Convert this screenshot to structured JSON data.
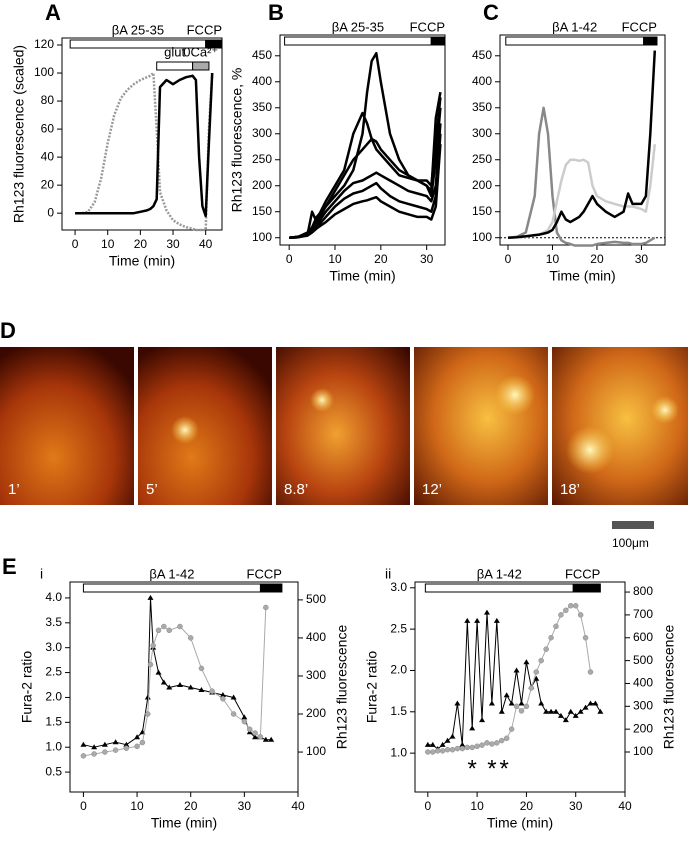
{
  "chart_data": [
    {
      "type": "line",
      "label": "A",
      "xlabel": "Time (min)",
      "ylabel": "Rh123 fluorescence (scaled)",
      "xlim": [
        -4,
        45
      ],
      "ylim": [
        -12,
        125
      ],
      "xticks": [
        0,
        10,
        20,
        30,
        40
      ],
      "yticks": [
        0,
        20,
        40,
        60,
        80,
        100,
        120
      ],
      "bars": [
        {
          "label": "βA 25-35",
          "start": -1.5,
          "end": 40,
          "color": "#ffffff",
          "row": 0
        },
        {
          "label": "FCCP",
          "start": 40,
          "end": 45,
          "color": "#000000",
          "row": 0
        },
        {
          "label": "glut",
          "start": 25,
          "end": 36,
          "color": "#ffffff",
          "row": 1
        },
        {
          "label": "0Ca²⁺",
          "start": 36,
          "end": 41,
          "color": "#aaaaaa",
          "row": 1
        }
      ],
      "x": [
        0,
        2,
        4,
        6,
        8,
        10,
        12,
        14,
        16,
        18,
        20,
        22,
        23,
        24,
        25,
        26,
        28,
        30,
        32,
        34,
        36,
        37,
        38,
        39,
        40,
        41,
        42
      ],
      "series": [
        {
          "color": "#999999",
          "dashed": true,
          "values": [
            0,
            0,
            1,
            8,
            25,
            50,
            70,
            82,
            88,
            92,
            95,
            97,
            98,
            100,
            60,
            15,
            2,
            -5,
            -8,
            -10,
            -11,
            -12,
            -12,
            -12,
            -12,
            60,
            100
          ]
        },
        {
          "color": "#000000",
          "values": [
            0,
            0,
            0,
            0,
            0,
            0,
            0,
            0,
            0,
            0,
            1,
            2,
            3,
            5,
            10,
            90,
            95,
            92,
            95,
            97,
            98,
            95,
            40,
            5,
            -2,
            50,
            100
          ]
        }
      ]
    },
    {
      "type": "line",
      "label": "B",
      "xlabel": "Time (min)",
      "ylabel": "Rh123 fluorescence, %",
      "xlim": [
        -2,
        34
      ],
      "ylim": [
        86,
        490
      ],
      "xticks": [
        0,
        10,
        20,
        30
      ],
      "yticks": [
        100,
        150,
        200,
        250,
        300,
        350,
        400,
        450
      ],
      "bars": [
        {
          "label": "βA 25-35",
          "start": -1,
          "end": 31,
          "color": "#ffffff",
          "row": 0
        },
        {
          "label": "FCCP",
          "start": 31,
          "end": 34,
          "color": "#000000",
          "row": 0
        }
      ],
      "x": [
        0,
        2,
        4,
        5,
        6,
        8,
        10,
        12,
        14,
        16,
        17,
        18,
        19,
        20,
        22,
        24,
        26,
        28,
        30,
        31,
        32,
        33
      ],
      "series": [
        {
          "color": "#000000",
          "values": [
            100,
            102,
            110,
            120,
            140,
            160,
            180,
            200,
            230,
            300,
            380,
            440,
            455,
            400,
            300,
            250,
            220,
            210,
            200,
            190,
            330,
            380
          ]
        },
        {
          "color": "#000000",
          "values": [
            100,
            102,
            108,
            118,
            135,
            170,
            200,
            230,
            300,
            340,
            320,
            290,
            270,
            260,
            240,
            220,
            215,
            210,
            210,
            200,
            280,
            370
          ]
        },
        {
          "color": "#000000",
          "values": [
            100,
            101,
            106,
            150,
            130,
            160,
            190,
            220,
            250,
            270,
            280,
            290,
            285,
            270,
            250,
            230,
            220,
            210,
            200,
            180,
            250,
            350
          ]
        },
        {
          "color": "#000000",
          "values": [
            100,
            102,
            108,
            115,
            125,
            150,
            170,
            190,
            205,
            210,
            215,
            220,
            225,
            220,
            210,
            200,
            190,
            185,
            180,
            170,
            200,
            320
          ]
        },
        {
          "color": "#000000",
          "values": [
            100,
            101,
            105,
            112,
            120,
            140,
            160,
            175,
            185,
            190,
            195,
            200,
            205,
            195,
            180,
            170,
            165,
            160,
            155,
            150,
            180,
            300
          ]
        },
        {
          "color": "#000000",
          "values": [
            100,
            101,
            104,
            110,
            118,
            130,
            145,
            155,
            165,
            170,
            172,
            175,
            178,
            170,
            160,
            150,
            145,
            140,
            140,
            135,
            160,
            280
          ]
        }
      ]
    },
    {
      "type": "line",
      "label": "C",
      "xlabel": "Time (min)",
      "ref_line": 100,
      "xlim": [
        -1.8,
        35.3
      ],
      "ylim": [
        86,
        490
      ],
      "xticks": [
        0,
        10,
        20,
        30
      ],
      "yticks": [
        100,
        150,
        200,
        250,
        300,
        350,
        400,
        450
      ],
      "bars": [
        {
          "label": "βA 1-42",
          "start": -0.5,
          "end": 30.5,
          "color": "#ffffff",
          "row": 0
        },
        {
          "label": "FCCP",
          "start": 30.5,
          "end": 33.5,
          "color": "#000000",
          "row": 0
        }
      ],
      "x": [
        0,
        2,
        4,
        6,
        7,
        8,
        9,
        10,
        11,
        12,
        13,
        14,
        15,
        16,
        17,
        18,
        19,
        20,
        22,
        24,
        26,
        27,
        28,
        30,
        31,
        32,
        33
      ],
      "series": [
        {
          "color": "#888888",
          "values": [
            100,
            102,
            110,
            180,
            300,
            350,
            300,
            180,
            110,
            95,
            90,
            88,
            85,
            85,
            85,
            85,
            85,
            88,
            90,
            92,
            90,
            90,
            88,
            88,
            90,
            95,
            100
          ]
        },
        {
          "color": "#cccccc",
          "values": [
            100,
            101,
            102,
            104,
            106,
            110,
            115,
            130,
            170,
            210,
            240,
            250,
            250,
            248,
            250,
            245,
            200,
            180,
            170,
            165,
            160,
            160,
            160,
            155,
            150,
            200,
            280
          ]
        },
        {
          "color": "#000000",
          "values": [
            100,
            101,
            103,
            105,
            106,
            108,
            110,
            115,
            130,
            150,
            135,
            130,
            135,
            140,
            150,
            165,
            180,
            165,
            150,
            140,
            150,
            185,
            165,
            165,
            180,
            300,
            460
          ]
        }
      ]
    },
    {
      "type": "line",
      "label": "i",
      "xlabel": "Time (min)",
      "ylabel": "Fura-2 ratio",
      "y2label": "Rh123 fluorescence",
      "xlim": [
        -2.5,
        40
      ],
      "ylim": [
        0.1,
        4.32
      ],
      "y2lim": [
        -5,
        547
      ],
      "xticks": [
        0,
        10,
        20,
        30,
        40
      ],
      "yticks": [
        0.5,
        {
          "value": 1,
          "label": "1.0"
        },
        1.5,
        {
          "value": 2,
          "label": "2.0"
        },
        2.5,
        {
          "value": 3,
          "label": "3.0"
        },
        3.5,
        {
          "value": 4,
          "label": "4.0"
        }
      ],
      "y2ticks": [
        100,
        200,
        300,
        400,
        500
      ],
      "bars": [
        {
          "label": "βA 1-42",
          "start": 0,
          "end": 33,
          "color": "#ffffff",
          "row": 0
        },
        {
          "label": "FCCP",
          "start": 33,
          "end": 37,
          "color": "#000000",
          "row": 0
        }
      ],
      "x": [
        0,
        2,
        4,
        6,
        8,
        10,
        11,
        12,
        12.5,
        13,
        14,
        15,
        16,
        18,
        20,
        22,
        24,
        26,
        28,
        30,
        31,
        32,
        33,
        34,
        35
      ],
      "series": [
        {
          "color": "#000000",
          "marker": "triangle",
          "values": [
            1.05,
            1.0,
            1.05,
            1.1,
            1.05,
            1.2,
            1.3,
            2.0,
            4.0,
            3.0,
            2.5,
            2.3,
            2.2,
            2.25,
            2.2,
            2.15,
            2.1,
            2.05,
            2.0,
            1.6,
            1.3,
            1.2,
            1.2,
            1.15,
            1.15
          ]
        },
        {
          "color": "#aaaaaa",
          "marker": "circle",
          "axis": "y2",
          "values": [
            90,
            95,
            100,
            105,
            110,
            115,
            125,
            200,
            330,
            380,
            420,
            430,
            420,
            430,
            400,
            320,
            260,
            240,
            200,
            180,
            160,
            150,
            140,
            480,
            null
          ]
        }
      ]
    },
    {
      "type": "line",
      "label": "ii",
      "xlabel": "Time (min)",
      "ylabel": "Fura-2 ratio",
      "y2label": "Rh123 fluorescence",
      "xlim": [
        -2.6,
        40
      ],
      "ylim": [
        0.53,
        3.07
      ],
      "y2lim": [
        -75,
        844
      ],
      "xticks": [
        0,
        10,
        20,
        30,
        40
      ],
      "yticks": [
        {
          "value": 1,
          "label": "1.0"
        },
        1.5,
        {
          "value": 2,
          "label": "2.0"
        },
        2.5,
        {
          "value": 3,
          "label": "3.0"
        }
      ],
      "y2ticks": [
        100,
        200,
        300,
        400,
        500,
        600,
        700,
        800
      ],
      "bars": [
        {
          "label": "βA 1-42",
          "start": -0.5,
          "end": 29.5,
          "color": "#ffffff",
          "row": 0
        },
        {
          "label": "FCCP",
          "start": 29.5,
          "end": 35,
          "color": "#000000",
          "row": 0
        }
      ],
      "annotations": [
        {
          "text": "*",
          "x": 9
        },
        {
          "text": "*",
          "x": 13
        },
        {
          "text": "*",
          "x": 15.5
        }
      ],
      "x": [
        0,
        1,
        2,
        3,
        4,
        5,
        6,
        7,
        8,
        9,
        10,
        11,
        12,
        13,
        14,
        15,
        16,
        17,
        18,
        19,
        20,
        21,
        22,
        23,
        24,
        25,
        26,
        27,
        28,
        29,
        30,
        31,
        32,
        33,
        34,
        35
      ],
      "series": [
        {
          "color": "#000000",
          "marker": "triangle",
          "values": [
            1.1,
            1.1,
            1.05,
            1.1,
            1.15,
            1.2,
            1.6,
            1.1,
            2.6,
            1.3,
            2.6,
            1.4,
            2.7,
            1.6,
            2.6,
            1.5,
            1.7,
            1.6,
            2.0,
            1.6,
            2.1,
            1.8,
            1.9,
            1.6,
            1.5,
            1.5,
            1.5,
            1.45,
            1.4,
            1.5,
            1.45,
            1.5,
            1.55,
            1.6,
            1.6,
            1.5
          ]
        },
        {
          "color": "#aaaaaa",
          "marker": "circle",
          "axis": "y2",
          "values": [
            100,
            100,
            105,
            105,
            110,
            110,
            115,
            115,
            120,
            120,
            125,
            130,
            140,
            135,
            140,
            150,
            160,
            200,
            300,
            280,
            300,
            380,
            450,
            500,
            550,
            600,
            650,
            700,
            720,
            740,
            740,
            700,
            600,
            450,
            null,
            null
          ]
        }
      ]
    }
  ],
  "panel_d": {
    "label": "D",
    "frames": [
      "1’",
      "5’",
      "8.8’",
      "12’",
      "18’"
    ],
    "scale_bar": "100μm"
  },
  "panel_e": {
    "label": "E"
  }
}
